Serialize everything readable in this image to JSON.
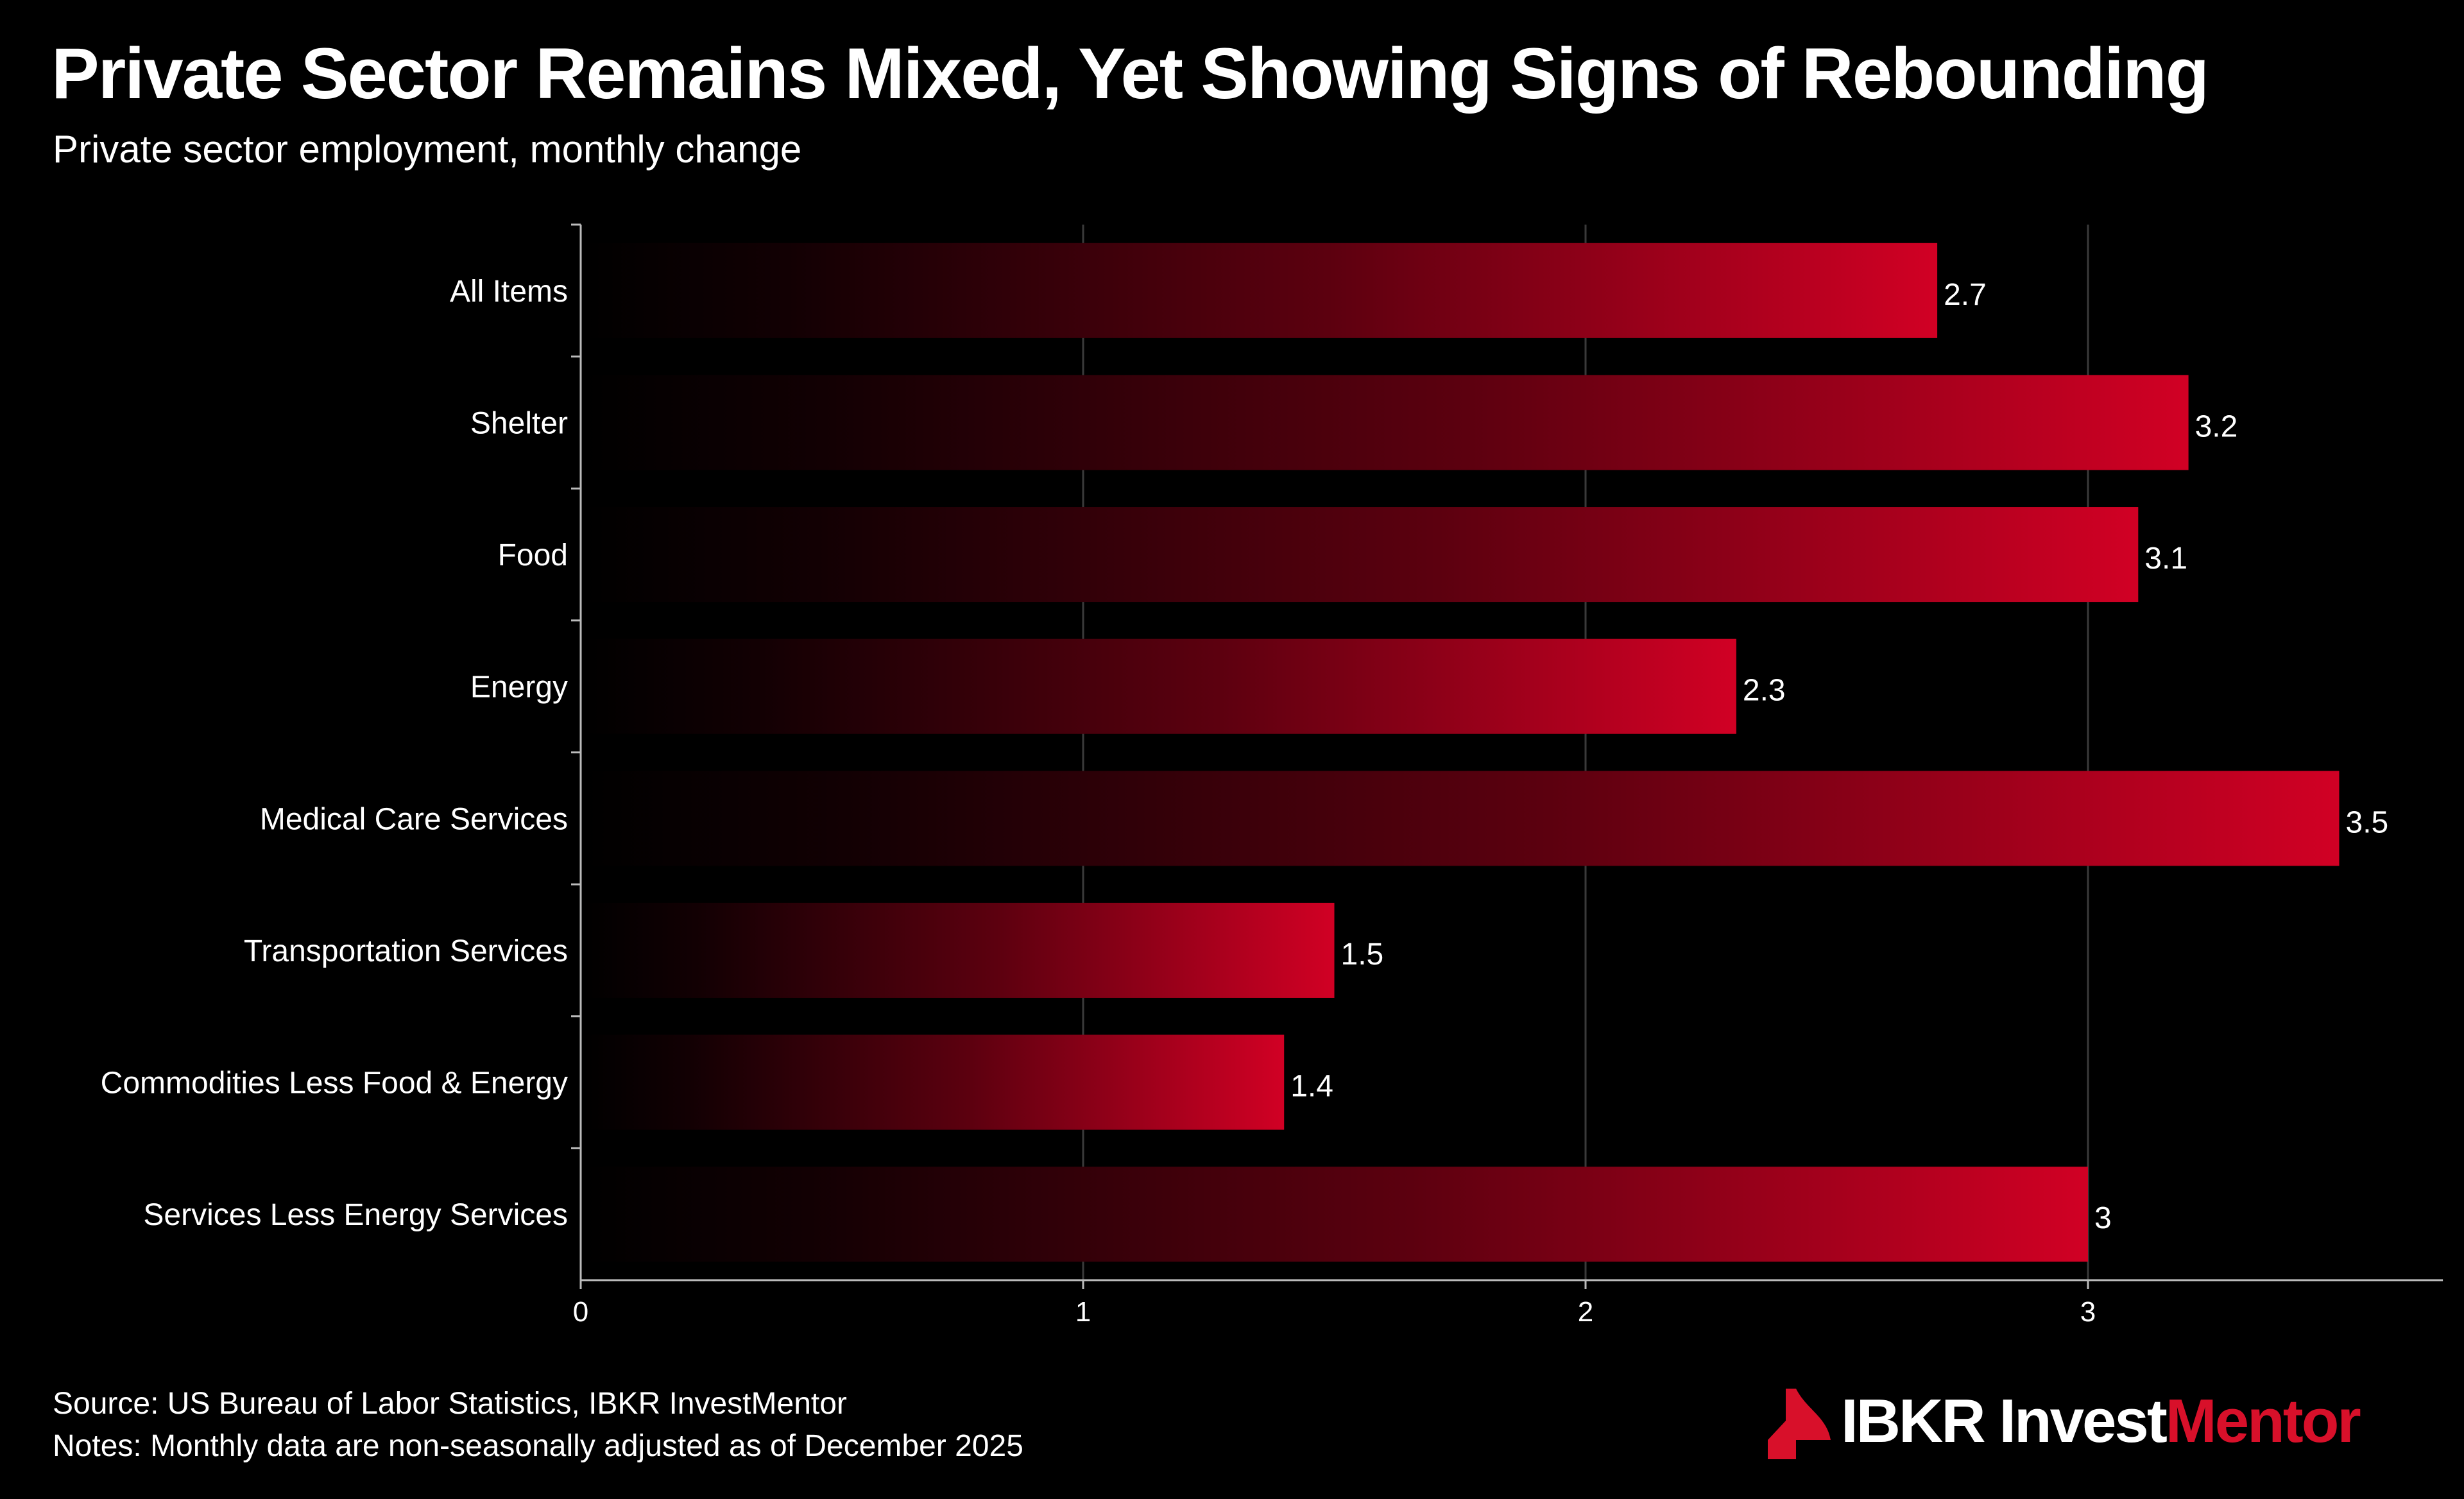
{
  "chart_data": {
    "type": "bar",
    "orientation": "horizontal",
    "title": "Private Sector Remains Mixed, Yet Showing Signs of Rebounding",
    "subtitle": "Private sector employment, monthly change",
    "categories": [
      "All Items",
      "Shelter",
      "Food",
      "Energy",
      "Medical Care Services",
      "Transportation Services",
      "Commodities Less Food & Energy",
      "Services Less Energy Services"
    ],
    "values": [
      2.7,
      3.2,
      3.1,
      2.3,
      3.5,
      1.5,
      1.4,
      3
    ],
    "value_labels": [
      "2.7",
      "3.2",
      "3.1",
      "2.3",
      "3.5",
      "1.5",
      "1.4",
      "3"
    ],
    "x_ticks": [
      0,
      1,
      2,
      3
    ],
    "x_tick_labels": [
      "0",
      "1",
      "2",
      "3"
    ],
    "xlim": [
      0,
      3.7
    ],
    "xlabel": "",
    "ylabel": "",
    "grid": true,
    "legend": "none",
    "bar_color_start": "#000000",
    "bar_color_end": "#d10024"
  },
  "footer": {
    "source": "Source: US Bureau of Labor Statistics, IBKR InvestMentor",
    "notes": "Notes: Monthly data are non-seasonally adjusted as of December 2025"
  },
  "brand": {
    "icon": "ibkr-flag-icon",
    "name_main": "IBKR Invest",
    "name_accent": "Mentor",
    "accent_color": "#d8102a"
  }
}
